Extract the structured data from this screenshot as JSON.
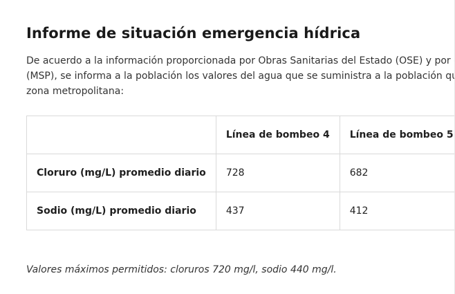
{
  "article": {
    "title": "Informe de situación emergencia hídrica",
    "intro_lines": [
      "De acuerdo a la información proporcionada por Obras Sanitarias del Estado (OSE) y por el M",
      "(MSP), se informa a la población los valores del agua que se suministra a la población que re",
      "zona metropolitana:"
    ],
    "table": {
      "headers": [
        "",
        "Línea de bombeo 4",
        "Línea de bombeo 5"
      ],
      "rows": [
        [
          "Cloruro (mg/L) promedio diario",
          "728",
          "682"
        ],
        [
          "Sodio (mg/L) promedio diario",
          "437",
          "412"
        ]
      ]
    },
    "note": "Valores máximos permitidos: cloruros 720 mg/l, sodio 440 mg/l."
  }
}
